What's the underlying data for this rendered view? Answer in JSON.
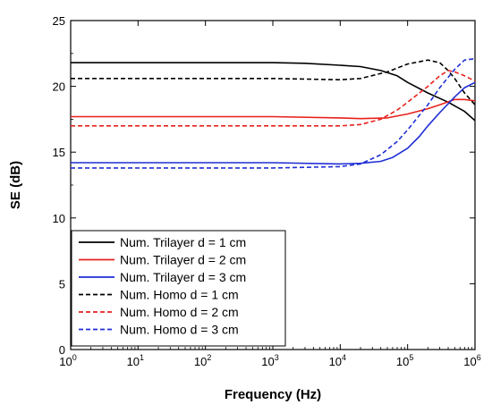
{
  "chart_data": {
    "type": "line",
    "xlabel": "Frequency (Hz)",
    "ylabel": "SE (dB)",
    "x_scale": "log",
    "xlim": [
      1,
      1000000
    ],
    "ylim": [
      0,
      25
    ],
    "x_ticks": [
      {
        "base": "10",
        "exp": "0",
        "value": 1
      },
      {
        "base": "10",
        "exp": "1",
        "value": 10
      },
      {
        "base": "10",
        "exp": "2",
        "value": 100
      },
      {
        "base": "10",
        "exp": "3",
        "value": 1000
      },
      {
        "base": "10",
        "exp": "4",
        "value": 10000
      },
      {
        "base": "10",
        "exp": "5",
        "value": 100000
      },
      {
        "base": "10",
        "exp": "6",
        "value": 1000000
      }
    ],
    "y_ticks": [
      "0",
      "5",
      "10",
      "15",
      "20",
      "25"
    ],
    "y_tick_values": [
      0,
      5,
      10,
      15,
      20,
      25
    ],
    "grid": false,
    "legend_position": "bottom-left",
    "series": [
      {
        "name": "Num. Trilayer d = 1 cm",
        "color": "#000000",
        "dash": "solid",
        "x": [
          1,
          10,
          100,
          1000,
          3000,
          10000,
          20000,
          40000,
          70000,
          100000,
          200000,
          400000,
          700000,
          1000000
        ],
        "y": [
          21.8,
          21.8,
          21.8,
          21.8,
          21.75,
          21.6,
          21.5,
          21.2,
          20.8,
          20.3,
          19.5,
          18.8,
          18.1,
          17.4
        ]
      },
      {
        "name": "Num. Trilayer d = 2 cm",
        "color": "#e8211c",
        "dash": "solid",
        "x": [
          1,
          10,
          100,
          1000,
          10000,
          20000,
          50000,
          100000,
          200000,
          300000,
          500000,
          700000,
          1000000
        ],
        "y": [
          17.7,
          17.7,
          17.7,
          17.7,
          17.6,
          17.55,
          17.6,
          17.9,
          18.3,
          18.6,
          19.0,
          19.0,
          18.9
        ]
      },
      {
        "name": "Num. Trilayer d = 3 cm",
        "color": "#1f2ed6",
        "dash": "solid",
        "x": [
          1,
          10,
          100,
          1000,
          10000,
          20000,
          40000,
          60000,
          100000,
          150000,
          200000,
          300000,
          500000,
          700000,
          1000000
        ],
        "y": [
          14.2,
          14.2,
          14.2,
          14.2,
          14.1,
          14.15,
          14.3,
          14.6,
          15.3,
          16.2,
          17.0,
          18.0,
          19.2,
          19.9,
          20.3
        ]
      },
      {
        "name": "Num. Homo d = 1 cm",
        "color": "#000000",
        "dash": "dashed",
        "x": [
          1,
          10,
          100,
          1000,
          10000,
          20000,
          50000,
          100000,
          200000,
          300000,
          400000,
          500000,
          700000,
          1000000
        ],
        "y": [
          20.6,
          20.6,
          20.6,
          20.6,
          20.5,
          20.6,
          21.1,
          21.7,
          22.0,
          21.8,
          21.2,
          20.6,
          19.5,
          18.6
        ]
      },
      {
        "name": "Num. Homo d = 2 cm",
        "color": "#e8211c",
        "dash": "dashed",
        "x": [
          1,
          10,
          100,
          1000,
          10000,
          20000,
          40000,
          70000,
          100000,
          200000,
          300000,
          400000,
          500000,
          700000,
          1000000
        ],
        "y": [
          17.0,
          17.0,
          17.0,
          17.0,
          17.0,
          17.1,
          17.5,
          18.2,
          18.8,
          20.0,
          20.8,
          21.2,
          21.1,
          20.8,
          20.4
        ]
      },
      {
        "name": "Num. Homo d = 3 cm",
        "color": "#1f2ed6",
        "dash": "dashed",
        "x": [
          1,
          10,
          100,
          1000,
          10000,
          20000,
          40000,
          70000,
          100000,
          200000,
          300000,
          500000,
          700000,
          1000000
        ],
        "y": [
          13.8,
          13.8,
          13.8,
          13.8,
          13.9,
          14.1,
          14.8,
          15.8,
          16.7,
          18.6,
          19.9,
          21.3,
          22.0,
          22.1
        ]
      }
    ]
  }
}
